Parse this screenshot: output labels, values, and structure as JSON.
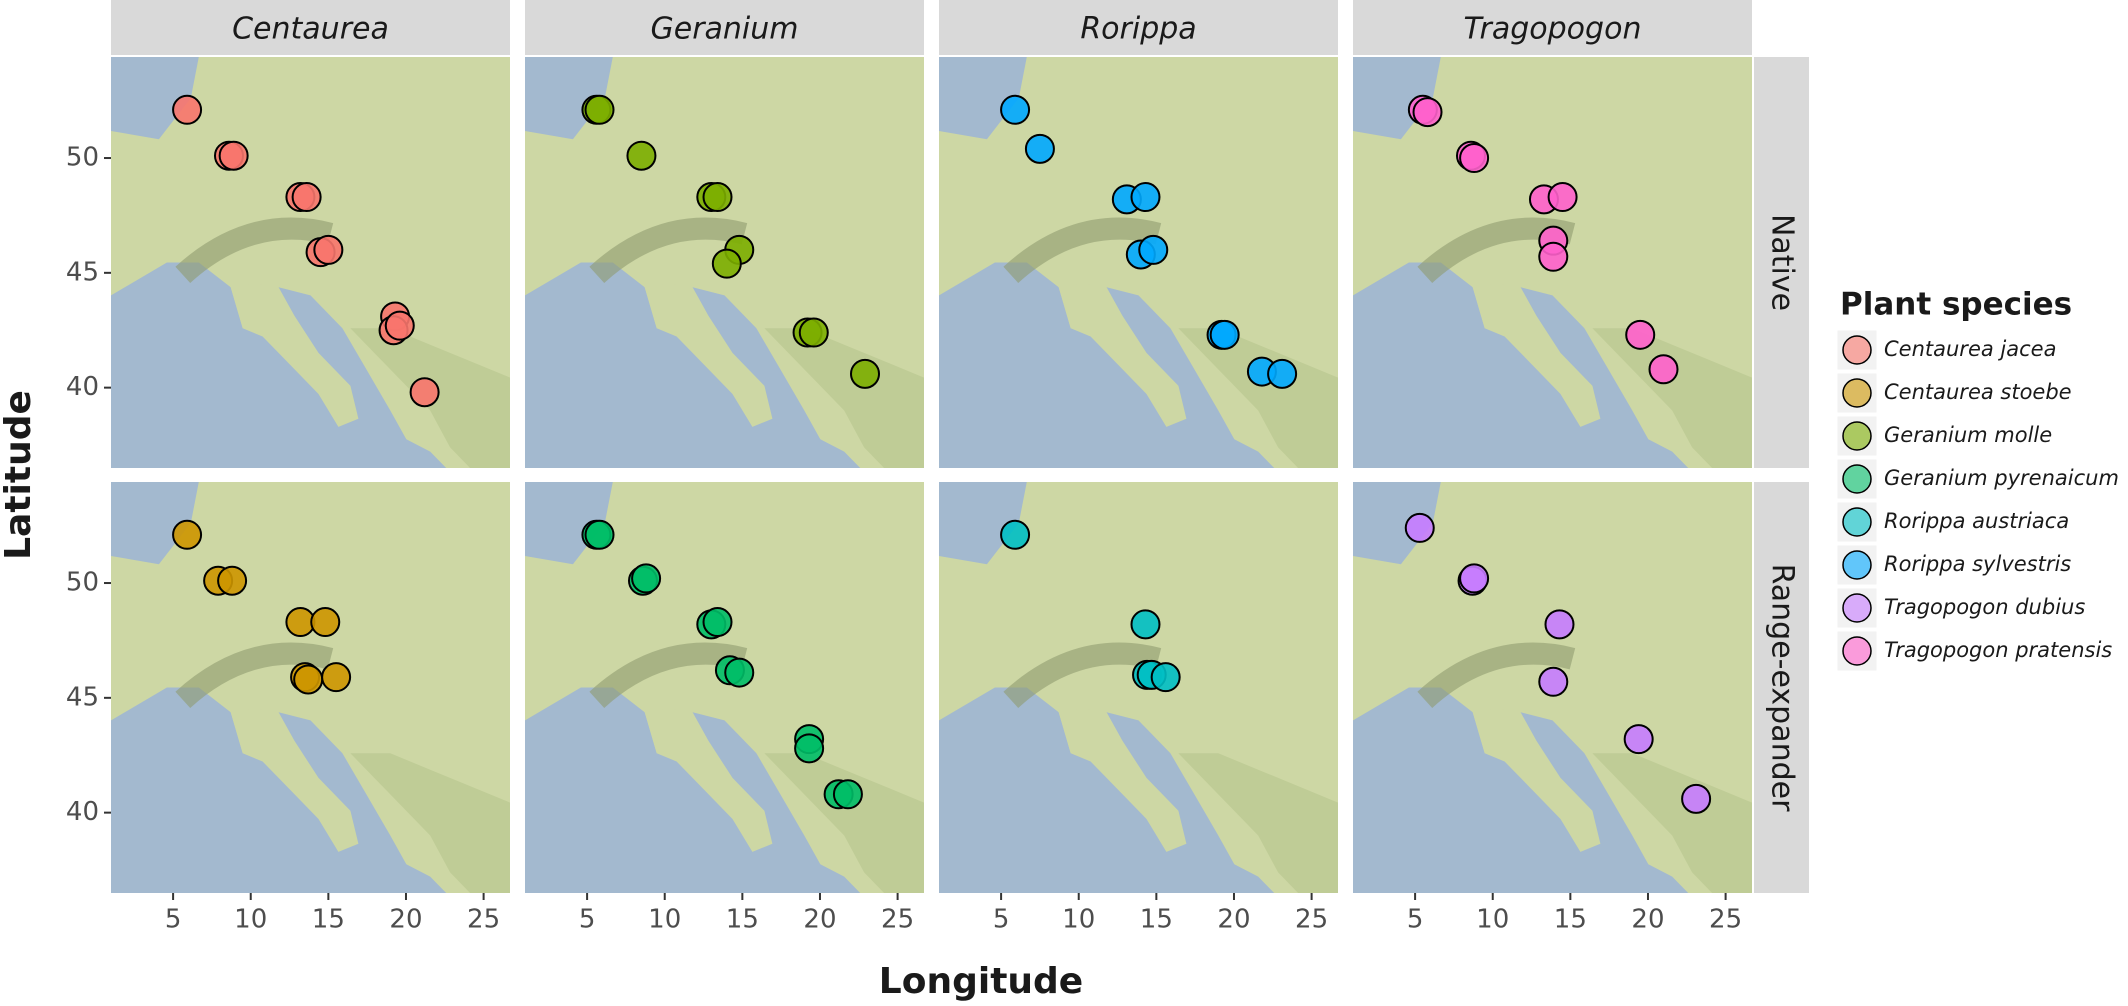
{
  "chart_data": {
    "type": "scatter",
    "x_label": "Longitude",
    "y_label": "Latitude",
    "legend_title": "Plant species",
    "columns": [
      "Centaurea",
      "Geranium",
      "Rorippa",
      "Tragopogon"
    ],
    "rows": [
      "Native",
      "Range-expander"
    ],
    "xlim": [
      1,
      26.7
    ],
    "xticks": [
      5,
      10,
      15,
      20,
      25
    ],
    "ylim": [
      36.5,
      54.4
    ],
    "yticks": [
      40,
      45,
      50
    ],
    "series": [
      {
        "name": "Centaurea jacea",
        "color": "#f8766d",
        "column": "Centaurea",
        "row": "Native",
        "x": [
          5.9,
          8.6,
          8.9,
          13.2,
          13.6,
          14.5,
          15,
          19.3,
          19.2,
          19.6,
          21.2
        ],
        "y": [
          52.1,
          50.1,
          50.1,
          48.3,
          48.3,
          45.9,
          46,
          43.1,
          42.5,
          42.7,
          39.8
        ]
      },
      {
        "name": "Centaurea stoebe",
        "color": "#cd9600",
        "column": "Centaurea",
        "row": "Range-expander",
        "x": [
          5.9,
          7.9,
          8.8,
          13.2,
          14.8,
          13.5,
          13.7,
          15.5
        ],
        "y": [
          52.1,
          50.1,
          50.1,
          48.3,
          48.3,
          45.9,
          45.8,
          45.9
        ]
      },
      {
        "name": "Geranium molle",
        "color": "#7cae00",
        "column": "Geranium",
        "row": "Native",
        "x": [
          5.6,
          5.8,
          8.5,
          13,
          13.4,
          14.8,
          14,
          19.2,
          19.6,
          22.9
        ],
        "y": [
          52.1,
          52.1,
          50.1,
          48.3,
          48.3,
          46,
          45.4,
          42.4,
          42.4,
          40.6
        ]
      },
      {
        "name": "Geranium pyrenaicum",
        "color": "#00be67",
        "column": "Geranium",
        "row": "Range-expander",
        "x": [
          5.6,
          5.8,
          8.6,
          8.8,
          13,
          13.4,
          14.2,
          14.8,
          19.3,
          19.3,
          21.2,
          21.8
        ],
        "y": [
          52.1,
          52.1,
          50.1,
          50.2,
          48.2,
          48.3,
          46.2,
          46.1,
          43.2,
          42.8,
          40.8,
          40.8
        ]
      },
      {
        "name": "Rorippa austriaca",
        "color": "#00bfc4",
        "column": "Rorippa",
        "row": "Range-expander",
        "x": [
          5.9,
          14.3,
          14.4,
          14.7,
          15.6
        ],
        "y": [
          52.1,
          48.2,
          46,
          46,
          45.9
        ]
      },
      {
        "name": "Rorippa sylvestris",
        "color": "#00a9ff",
        "column": "Rorippa",
        "row": "Native",
        "x": [
          5.9,
          7.5,
          13.1,
          14.3,
          14,
          14.8,
          19.2,
          19.4,
          21.8,
          23.1
        ],
        "y": [
          52.1,
          50.4,
          48.2,
          48.3,
          45.8,
          46,
          42.3,
          42.3,
          40.7,
          40.6
        ]
      },
      {
        "name": "Tragopogon dubius",
        "color": "#c77cff",
        "column": "Tragopogon",
        "row": "Range-expander",
        "x": [
          5.3,
          8.7,
          8.8,
          14.3,
          13.9,
          19.4,
          23.1
        ],
        "y": [
          52.4,
          50.1,
          50.2,
          48.2,
          45.7,
          43.2,
          40.6
        ]
      },
      {
        "name": "Tragopogon pratensis",
        "color": "#ff61cc",
        "column": "Tragopogon",
        "row": "Native",
        "x": [
          5.5,
          5.8,
          8.6,
          8.8,
          13.3,
          14.5,
          13.9,
          13.9,
          19.5,
          21
        ],
        "y": [
          52.1,
          52,
          50.1,
          50,
          48.2,
          48.3,
          46.4,
          45.7,
          42.3,
          40.8
        ]
      }
    ]
  }
}
